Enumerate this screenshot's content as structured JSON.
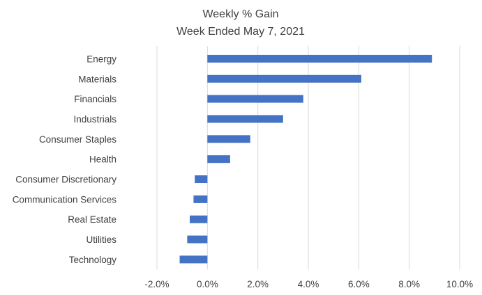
{
  "chart_data": {
    "type": "bar",
    "orientation": "horizontal",
    "title": "Weekly % Gain",
    "subtitle": "Week Ended May 7, 2021",
    "categories": [
      "Energy",
      "Materials",
      "Financials",
      "Industrials",
      "Consumer Staples",
      "Health",
      "Consumer Discretionary",
      "Communication Services",
      "Real Estate",
      "Utilities",
      "Technology"
    ],
    "values": [
      8.9,
      6.1,
      3.8,
      3.0,
      1.7,
      0.9,
      -0.5,
      -0.55,
      -0.7,
      -0.8,
      -1.1
    ],
    "x_ticks": [
      "-2.0%",
      "0.0%",
      "2.0%",
      "4.0%",
      "6.0%",
      "8.0%",
      "10.0%"
    ],
    "xlim": [
      -2.0,
      10.0
    ],
    "xlabel": "",
    "ylabel": "",
    "grid": "vertical",
    "legend": "none",
    "bar_color": "#4472C4",
    "grid_color": "#D9D9D9"
  }
}
